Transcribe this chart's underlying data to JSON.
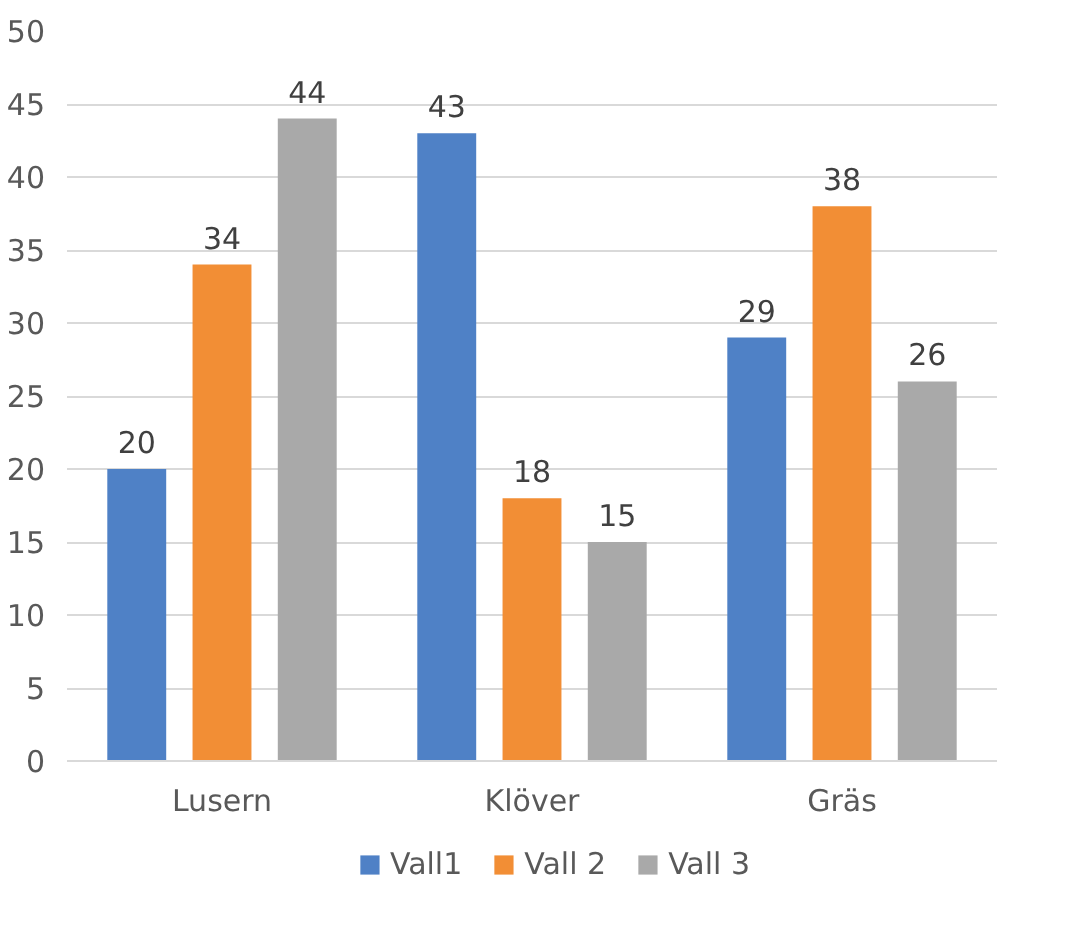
{
  "chart_data": {
    "type": "bar",
    "categories": [
      "Lusern",
      "Klöver",
      "Gräs"
    ],
    "series": [
      {
        "name": "Vall1",
        "color": "#4f81c6",
        "values": [
          20,
          43,
          29
        ]
      },
      {
        "name": "Vall 2",
        "color": "#f28e35",
        "values": [
          34,
          18,
          38
        ]
      },
      {
        "name": "Vall 3",
        "color": "#a9a9a9",
        "values": [
          44,
          15,
          26
        ]
      }
    ],
    "ylim": [
      0,
      50
    ],
    "yticks": [
      0,
      5,
      10,
      15,
      20,
      25,
      30,
      35,
      40,
      45,
      50
    ],
    "grid": "y",
    "legend": "bottom",
    "data_labels": true
  }
}
